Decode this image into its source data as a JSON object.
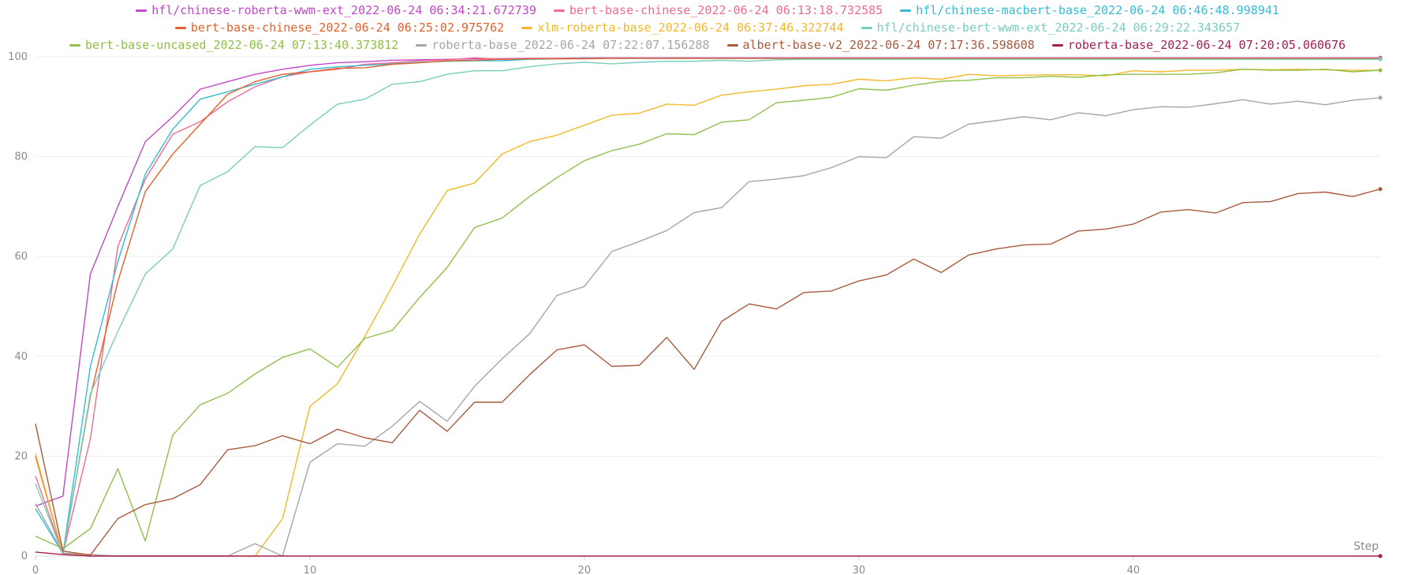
{
  "chart_data": {
    "type": "line",
    "title": "",
    "xlabel": "Step",
    "ylabel": "",
    "xlim": [
      0,
      49
    ],
    "ylim": [
      0,
      100
    ],
    "x_ticks": [
      0,
      10,
      20,
      30,
      40
    ],
    "y_ticks": [
      0,
      20,
      40,
      60,
      80,
      100
    ],
    "grid": "horizontal",
    "legend_position": "top-center",
    "x": [
      0,
      1,
      2,
      3,
      4,
      5,
      6,
      7,
      8,
      9,
      10,
      11,
      12,
      13,
      14,
      15,
      16,
      17,
      18,
      19,
      20,
      21,
      22,
      23,
      24,
      25,
      26,
      27,
      28,
      29,
      30,
      31,
      32,
      33,
      34,
      35,
      36,
      37,
      38,
      39,
      40,
      41,
      42,
      43,
      44,
      45,
      46,
      47,
      48,
      49
    ],
    "series": [
      {
        "name": "hfl/chinese-roberta-wwm-ext_2022-06-24 06:34:21.672739",
        "color": "#c247c8",
        "values": [
          10,
          12,
          56.5,
          70,
          83,
          88,
          93.5,
          95,
          96.5,
          97.5,
          98.3,
          98.8,
          99,
          99.3,
          99.4,
          99.5,
          99.6,
          99.6,
          99.7,
          99.7,
          99.8,
          99.8,
          99.8,
          99.8,
          99.8,
          99.8,
          99.8,
          99.8,
          99.8,
          99.8,
          99.8,
          99.8,
          99.8,
          99.8,
          99.8,
          99.8,
          99.8,
          99.8,
          99.8,
          99.8,
          99.8,
          99.8,
          99.8,
          99.8,
          99.8,
          99.8,
          99.8,
          99.8,
          99.8,
          99.8
        ]
      },
      {
        "name": "bert-base-chinese_2022-06-24 06:13:18.732585",
        "color": "#ee6b8f",
        "values": [
          16,
          0.5,
          23.5,
          62,
          75.5,
          84.5,
          87,
          91,
          94,
          96,
          97,
          97.5,
          98.5,
          98.8,
          99.2,
          99.4,
          99.8,
          99.5,
          99.6,
          99.7,
          99.7,
          99.7,
          99.7,
          99.7,
          99.7,
          99.7,
          99.7,
          99.7,
          99.7,
          99.7,
          99.7,
          99.7,
          99.7,
          99.7,
          99.7,
          99.7,
          99.7,
          99.7,
          99.7,
          99.7,
          99.7,
          99.7,
          99.7,
          99.7,
          99.7,
          99.7,
          99.7,
          99.7,
          99.7,
          99.7
        ]
      },
      {
        "name": "hfl/chinese-macbert-base_2022-06-24 06:46:48.998941",
        "color": "#33bcd4",
        "values": [
          9.5,
          0.5,
          38,
          59,
          76.5,
          85.5,
          91.5,
          93,
          94.5,
          96,
          97.5,
          98,
          98.3,
          98.6,
          98.9,
          99.1,
          99.2,
          99.2,
          99.5,
          99.6,
          99.7,
          99.7,
          99.7,
          99.7,
          99.7,
          99.7,
          99.7,
          99.7,
          99.7,
          99.7,
          99.7,
          99.7,
          99.7,
          99.7,
          99.7,
          99.7,
          99.7,
          99.7,
          99.7,
          99.7,
          99.7,
          99.7,
          99.7,
          99.7,
          99.7,
          99.7,
          99.7,
          99.7,
          99.7,
          99.7
        ]
      },
      {
        "name": "bert-base-chinese_2022-06-24 06:25:02.975762",
        "color": "#e2612b",
        "values": [
          20,
          0.3,
          32,
          55,
          73,
          80.5,
          86.5,
          92.5,
          95,
          96.5,
          97,
          97.7,
          97.8,
          98.5,
          98.8,
          99.2,
          99.3,
          99.5,
          99.6,
          99.6,
          99.6,
          99.7,
          99.7,
          99.7,
          99.7,
          99.7,
          99.7,
          99.7,
          99.7,
          99.7,
          99.7,
          99.7,
          99.7,
          99.7,
          99.7,
          99.7,
          99.7,
          99.7,
          99.7,
          99.7,
          99.7,
          99.7,
          99.7,
          99.7,
          99.7,
          99.7,
          99.7,
          99.7,
          99.7,
          99.7
        ]
      },
      {
        "name": "xlm-roberta-base_2022-06-24 06:37:46.322744",
        "color": "#f2b829",
        "values": [
          20.5,
          0.4,
          0.3,
          0,
          0,
          0,
          0,
          0,
          0,
          7.5,
          30,
          34.5,
          44,
          54,
          64.5,
          73.2,
          74.7,
          80.5,
          83,
          84.3,
          86.3,
          88.3,
          88.7,
          90.5,
          90.3,
          92.3,
          93,
          93.5,
          94.2,
          94.5,
          95.5,
          95.2,
          95.8,
          95.5,
          96.5,
          96.2,
          96.3,
          96.4,
          96.4,
          96.2,
          97.2,
          97,
          97.3,
          97.3,
          97.5,
          97.4,
          97.5,
          97.4,
          97.3,
          97.3
        ]
      },
      {
        "name": "hfl/chinese-bert-wwm-ext_2022-06-24 06:29:22.343657",
        "color": "#78cdbf",
        "values": [
          14.5,
          0.4,
          32.5,
          45,
          56.5,
          61.5,
          74.2,
          77,
          82,
          81.8,
          86.3,
          90.5,
          91.5,
          94.5,
          95,
          96.5,
          97.2,
          97.2,
          98,
          98.6,
          98.9,
          98.6,
          98.9,
          99.1,
          99.1,
          99.3,
          99.1,
          99.4,
          99.5,
          99.5,
          99.5,
          99.5,
          99.5,
          99.5,
          99.5,
          99.5,
          99.5,
          99.5,
          99.5,
          99.5,
          99.5,
          99.5,
          99.5,
          99.5,
          99.5,
          99.5,
          99.5,
          99.5,
          99.5,
          99.5
        ]
      },
      {
        "name": "bert-base-uncased_2022-06-24 07:13:40.373812",
        "color": "#8fc048",
        "values": [
          4,
          1.5,
          5.5,
          17.5,
          3,
          24.2,
          30.3,
          32.6,
          36.5,
          39.8,
          41.5,
          37.8,
          43.6,
          45.2,
          51.8,
          57.8,
          65.8,
          67.7,
          72,
          75.8,
          79.2,
          81.2,
          82.5,
          84.6,
          84.4,
          86.9,
          87.4,
          90.8,
          91.3,
          91.9,
          93.6,
          93.3,
          94.3,
          95.1,
          95.3,
          95.8,
          95.8,
          96.1,
          95.9,
          96.4,
          96.5,
          96.5,
          96.5,
          96.8,
          97.5,
          97.3,
          97.3,
          97.5,
          97,
          97.3
        ]
      },
      {
        "name": "roberta-base_2022-06-24 07:22:07.156288",
        "color": "#a5a5ad",
        "values": [
          10.5,
          0.6,
          0.3,
          0,
          0,
          0,
          0,
          0,
          2.5,
          0,
          18.8,
          22.5,
          22,
          26,
          31,
          27,
          34,
          39.5,
          44.5,
          52.2,
          54,
          61,
          63,
          65.2,
          68.8,
          69.8,
          75,
          75.5,
          76.2,
          77.8,
          80,
          79.8,
          84,
          83.7,
          86.5,
          87.2,
          88,
          87.4,
          88.8,
          88.2,
          89.4,
          90,
          89.9,
          90.6,
          91.4,
          90.5,
          91.1,
          90.4,
          91.3,
          91.8
        ]
      },
      {
        "name": "albert-base-v2_2022-06-24 07:17:36.598608",
        "color": "#a85a3e",
        "values": [
          26.5,
          1,
          0.2,
          7.5,
          10.3,
          11.5,
          14.3,
          21.3,
          22.1,
          24.1,
          22.5,
          25.4,
          23.7,
          22.7,
          29.2,
          25,
          30.8,
          30.8,
          36.3,
          41.3,
          42.3,
          38,
          38.2,
          43.8,
          37.4,
          47,
          50.5,
          49.5,
          52.8,
          53.1,
          55.1,
          56.3,
          59.5,
          56.8,
          60.3,
          61.5,
          62.3,
          62.5,
          65.1,
          65.5,
          66.5,
          68.9,
          69.4,
          68.7,
          70.8,
          71,
          72.6,
          72.9,
          72,
          73.5
        ]
      },
      {
        "name": "roberta-base_2022-06-24 07:20:05.060676",
        "color": "#a31e54",
        "values": [
          0.8,
          0.3,
          0,
          0,
          0,
          0,
          0,
          0,
          0,
          0,
          0,
          0,
          0,
          0,
          0,
          0,
          0,
          0,
          0,
          0,
          0,
          0,
          0,
          0,
          0,
          0,
          0,
          0,
          0,
          0,
          0,
          0,
          0,
          0,
          0,
          0,
          0,
          0,
          0,
          0,
          0,
          0,
          0,
          0,
          0,
          0,
          0,
          0,
          0,
          0
        ]
      }
    ]
  }
}
